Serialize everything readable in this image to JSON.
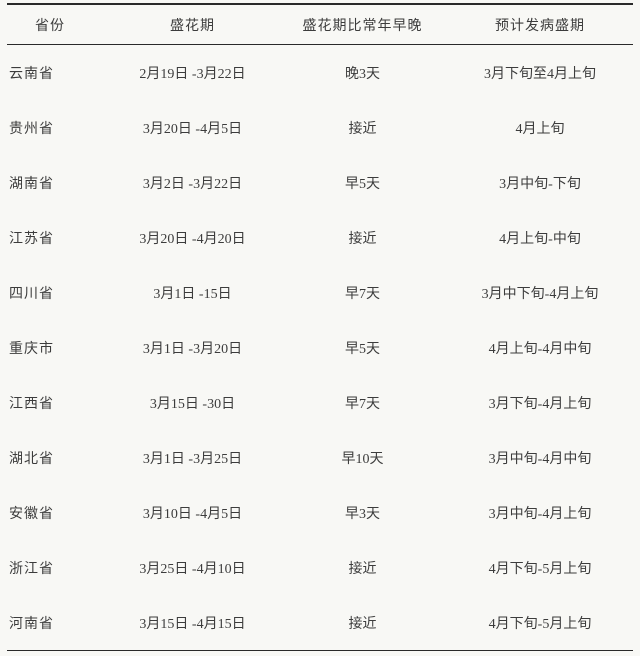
{
  "table": {
    "columns": [
      "省份",
      "盛花期",
      "盛花期比常年早晚",
      "预计发病盛期"
    ],
    "rows": [
      {
        "cells": [
          "云南省",
          "2月19日 -3月22日",
          "晚3天",
          "3月下旬至4月上旬"
        ]
      },
      {
        "cells": [
          "贵州省",
          "3月20日 -4月5日",
          "接近",
          "4月上旬"
        ]
      },
      {
        "cells": [
          "湖南省",
          "3月2日 -3月22日",
          "早5天",
          "3月中旬-下旬"
        ]
      },
      {
        "cells": [
          "江苏省",
          "3月20日 -4月20日",
          "接近",
          "4月上旬-中旬"
        ]
      },
      {
        "cells": [
          "四川省",
          "3月1日 -15日",
          "早7天",
          "3月中下旬-4月上旬"
        ]
      },
      {
        "cells": [
          "重庆市",
          "3月1日 -3月20日",
          "早5天",
          "4月上旬-4月中旬"
        ]
      },
      {
        "cells": [
          "江西省",
          "3月15日 -30日",
          "早7天",
          "3月下旬-4月上旬"
        ]
      },
      {
        "cells": [
          "湖北省",
          "3月1日 -3月25日",
          "早10天",
          "3月中旬-4月中旬"
        ]
      },
      {
        "cells": [
          "安徽省",
          "3月10日 -4月5日",
          "早3天",
          "3月中旬-4月上旬"
        ]
      },
      {
        "cells": [
          "浙江省",
          "3月25日 -4月10日",
          "接近",
          "4月下旬-5月上旬"
        ]
      },
      {
        "cells": [
          "河南省",
          "3月15日 -4月15日",
          "接近",
          "4月下旬-5月上旬"
        ]
      }
    ]
  },
  "colors": {
    "background": "#f8f8f5",
    "text": "#3c3c3c",
    "rule": "#2a2a2a"
  }
}
